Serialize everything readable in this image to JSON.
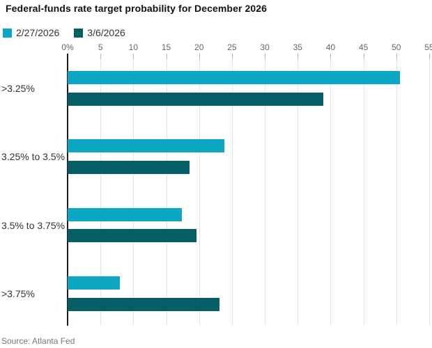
{
  "title": "Federal-funds rate target probability for December 2026",
  "source": "Source: Atlanta Fed",
  "colors": {
    "series1": "#0aa6c2",
    "series2": "#055e66",
    "gridline": "#e6e6e6",
    "axis_line": "#1c1c1c"
  },
  "chart_data": {
    "type": "bar",
    "orientation": "horizontal",
    "title": "Federal-funds rate target probability for December 2026",
    "categories": [
      ">3.25%",
      "3.25% to 3.5%",
      "3.5% to 3.75%",
      ">3.75%"
    ],
    "series": [
      {
        "name": "2/27/2026",
        "color": "#0aa6c2",
        "values": [
          50.6,
          23.8,
          17.4,
          8.0
        ]
      },
      {
        "name": "3/6/2026",
        "color": "#055e66",
        "values": [
          38.9,
          18.5,
          19.6,
          23.1
        ]
      }
    ],
    "xlabel": "",
    "ylabel": "",
    "x_ticks": [
      "0%",
      "5",
      "10",
      "15",
      "20",
      "25",
      "30",
      "35",
      "40",
      "45",
      "50",
      "55"
    ],
    "x_tick_values": [
      0,
      5,
      10,
      15,
      20,
      25,
      30,
      35,
      40,
      45,
      50,
      55
    ],
    "xlim": [
      0,
      55
    ],
    "grid": true,
    "legend_position": "top",
    "source": "Source: Atlanta Fed"
  }
}
